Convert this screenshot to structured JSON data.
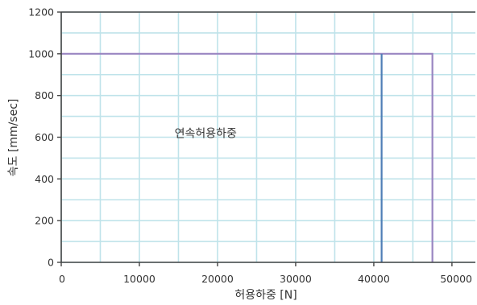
{
  "chart_data": {
    "type": "line",
    "xlabel": "허용하중 [N]",
    "ylabel": "속도 [mm/sec]",
    "xlim": [
      0,
      53000
    ],
    "ylim": [
      0,
      1200
    ],
    "x_ticks": [
      0,
      10000,
      20000,
      30000,
      40000,
      50000
    ],
    "y_ticks": [
      0,
      200,
      400,
      600,
      800,
      1000,
      1200
    ],
    "x_tick_labels": [
      "0",
      "10000",
      "20000",
      "30000",
      "40000",
      "50000"
    ],
    "y_tick_labels": [
      "0",
      "200",
      "400",
      "600",
      "800",
      "1000",
      "1200"
    ],
    "x_minor_gridlines": [
      5000,
      15000,
      25000,
      35000,
      45000
    ],
    "y_minor_gridlines": [
      100,
      300,
      500,
      700,
      900,
      1100
    ],
    "grid": true,
    "series": [
      {
        "color": "#9a86c2",
        "points": [
          [
            0,
            1000
          ],
          [
            47500,
            1000
          ],
          [
            47500,
            0
          ]
        ]
      },
      {
        "color": "#4f7fb7",
        "points": [
          [
            41000,
            1000
          ],
          [
            41000,
            0
          ]
        ]
      }
    ],
    "annotations": [
      {
        "text": "연속허용하중",
        "x": 14500,
        "y": 620
      }
    ]
  },
  "colors": {
    "grid": "#bfe3ea",
    "axis": "#444444"
  }
}
